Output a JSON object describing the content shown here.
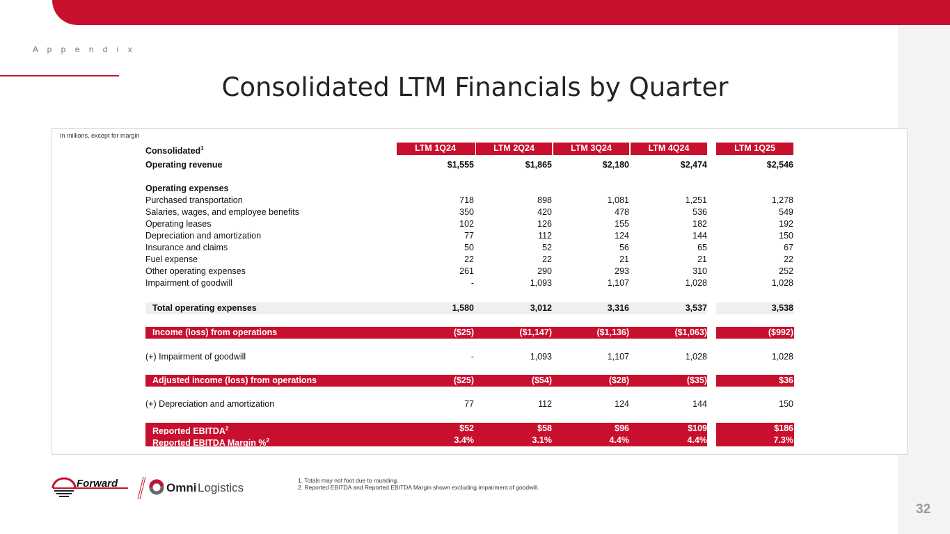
{
  "header": {
    "section": "A p p e n d i x",
    "title": "Consolidated LTM Financials by Quarter"
  },
  "table": {
    "note": "In millions, except for margin",
    "corner": "Consolidated",
    "corner_sup": "1",
    "columns": [
      "LTM 1Q24",
      "LTM 2Q24",
      "LTM 3Q24",
      "LTM 4Q24",
      "LTM 1Q25"
    ],
    "revenue": {
      "label": "Operating revenue",
      "values": [
        "$1,555",
        "$1,865",
        "$2,180",
        "$2,474",
        "$2,546"
      ]
    },
    "opex_heading": "Operating expenses",
    "opex": [
      {
        "label": "Purchased transportation",
        "values": [
          "718",
          "898",
          "1,081",
          "1,251",
          "1,278"
        ]
      },
      {
        "label": "Salaries, wages, and employee benefits",
        "values": [
          "350",
          "420",
          "478",
          "536",
          "549"
        ]
      },
      {
        "label": "Operating leases",
        "values": [
          "102",
          "126",
          "155",
          "182",
          "192"
        ]
      },
      {
        "label": "Depreciation and amortization",
        "values": [
          "77",
          "112",
          "124",
          "144",
          "150"
        ]
      },
      {
        "label": "Insurance and claims",
        "values": [
          "50",
          "52",
          "56",
          "65",
          "67"
        ]
      },
      {
        "label": "Fuel expense",
        "values": [
          "22",
          "22",
          "21",
          "21",
          "22"
        ]
      },
      {
        "label": "Other operating expenses",
        "values": [
          "261",
          "290",
          "293",
          "310",
          "252"
        ]
      },
      {
        "label": "Impairment of goodwill",
        "values": [
          "-",
          "1,093",
          "1,107",
          "1,028",
          "1,028"
        ]
      }
    ],
    "total_opex": {
      "label": "Total operating expenses",
      "values": [
        "1,580",
        "3,012",
        "3,316",
        "3,537",
        "3,538"
      ]
    },
    "income": {
      "label": "Income (loss) from operations",
      "values": [
        "($25)",
        "($1,147)",
        "($1,136)",
        "($1,063)",
        "($992)"
      ]
    },
    "add_impairment": {
      "label": "(+) Impairment of goodwill",
      "values": [
        "-",
        "1,093",
        "1,107",
        "1,028",
        "1,028"
      ]
    },
    "adj_income": {
      "label": "Adjusted income (loss) from operations",
      "values": [
        "($25)",
        "($54)",
        "($28)",
        "($35)",
        "$36"
      ]
    },
    "add_da": {
      "label": "(+) Depreciation and amortization",
      "values": [
        "77",
        "112",
        "124",
        "144",
        "150"
      ]
    },
    "ebitda": {
      "label": "Reported EBITDA",
      "sup": "2",
      "values": [
        "$52",
        "$58",
        "$96",
        "$109",
        "$186"
      ]
    },
    "margin": {
      "label": "Reported EBITDA Margin %",
      "sup": "2",
      "values": [
        "3.4%",
        "3.1%",
        "4.4%",
        "4.4%",
        "7.3%"
      ]
    }
  },
  "footnotes": [
    "1.  Totals may not foot due to rounding.",
    "2.  Reported EBITDA and Reported EBITDA Margin shown excluding impairment of goodwill."
  ],
  "logos": {
    "forward": "Forward",
    "omni_bold": "Omni",
    "omni_light": "Logistics"
  },
  "page_number": "32",
  "colors": {
    "brand_red": "#c8102e"
  }
}
